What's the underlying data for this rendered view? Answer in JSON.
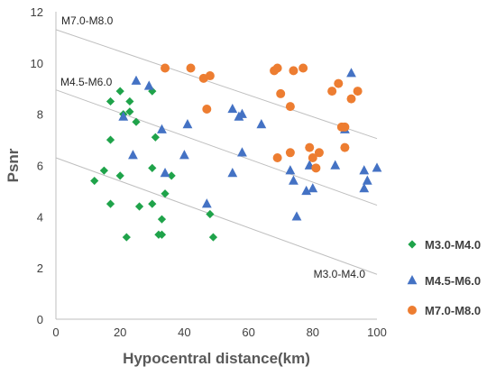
{
  "chart_data": {
    "type": "scatter",
    "xlabel": "Hypocentral distance(km)",
    "ylabel": "Psnr",
    "xlim": [
      0,
      100
    ],
    "ylim": [
      0,
      12
    ],
    "x_ticks": [
      0,
      20,
      40,
      60,
      80,
      100
    ],
    "y_ticks": [
      0,
      2,
      4,
      6,
      8,
      10,
      12
    ],
    "grid": false,
    "legend_position": "right",
    "series": [
      {
        "name": "M3.0-M4.0",
        "marker": "diamond",
        "color": "#1fa34a",
        "x": [
          17,
          20,
          23,
          21,
          23,
          25,
          30,
          17,
          31,
          15,
          12,
          20,
          30,
          36,
          34,
          17,
          26,
          30,
          33,
          48,
          33,
          22,
          32,
          49
        ],
        "y": [
          8.5,
          8.9,
          8.5,
          8.0,
          8.1,
          7.7,
          8.9,
          7.0,
          7.1,
          5.8,
          5.4,
          5.6,
          5.9,
          5.6,
          4.9,
          4.5,
          4.4,
          4.5,
          3.9,
          4.1,
          3.3,
          3.2,
          3.3,
          3.2
        ]
      },
      {
        "name": "M4.5-M6.0",
        "marker": "triangle",
        "color": "#4472c4",
        "x": [
          25,
          29,
          21,
          33,
          41,
          24,
          40,
          34,
          47,
          55,
          57,
          58,
          64,
          58,
          55,
          73,
          74,
          79,
          79,
          78,
          80,
          75,
          87,
          90,
          92,
          96,
          97,
          100,
          96
        ],
        "y": [
          9.3,
          9.1,
          7.9,
          7.4,
          7.6,
          6.4,
          6.4,
          5.7,
          4.5,
          8.2,
          7.9,
          8.0,
          7.6,
          6.5,
          5.7,
          5.8,
          5.4,
          6.0,
          6.0,
          5.0,
          5.1,
          4.0,
          6.0,
          7.4,
          9.6,
          5.8,
          5.4,
          5.9,
          5.1
        ]
      },
      {
        "name": "M7.0-M8.0",
        "marker": "circle",
        "color": "#ed7d31",
        "x": [
          34,
          42,
          46,
          48,
          47,
          68,
          69,
          70,
          74,
          77,
          73,
          69,
          79,
          73,
          80,
          81,
          82,
          86,
          88,
          89,
          90,
          90,
          92,
          94
        ],
        "y": [
          9.8,
          9.8,
          9.4,
          9.5,
          8.2,
          9.7,
          9.8,
          8.8,
          9.7,
          9.8,
          8.3,
          6.3,
          6.7,
          6.5,
          6.3,
          5.9,
          6.5,
          8.9,
          9.2,
          7.5,
          7.5,
          6.7,
          8.6,
          8.9
        ]
      }
    ],
    "reference_lines": [
      {
        "label": "M7.0-M8.0",
        "x": [
          0,
          100
        ],
        "y": [
          11.3,
          7.05
        ]
      },
      {
        "label": "M4.5-M6.0",
        "x": [
          0,
          100
        ],
        "y": [
          8.95,
          4.45
        ]
      },
      {
        "label": "M3.0-M4.0",
        "x": [
          0,
          100
        ],
        "y": [
          6.3,
          1.75
        ]
      }
    ]
  }
}
